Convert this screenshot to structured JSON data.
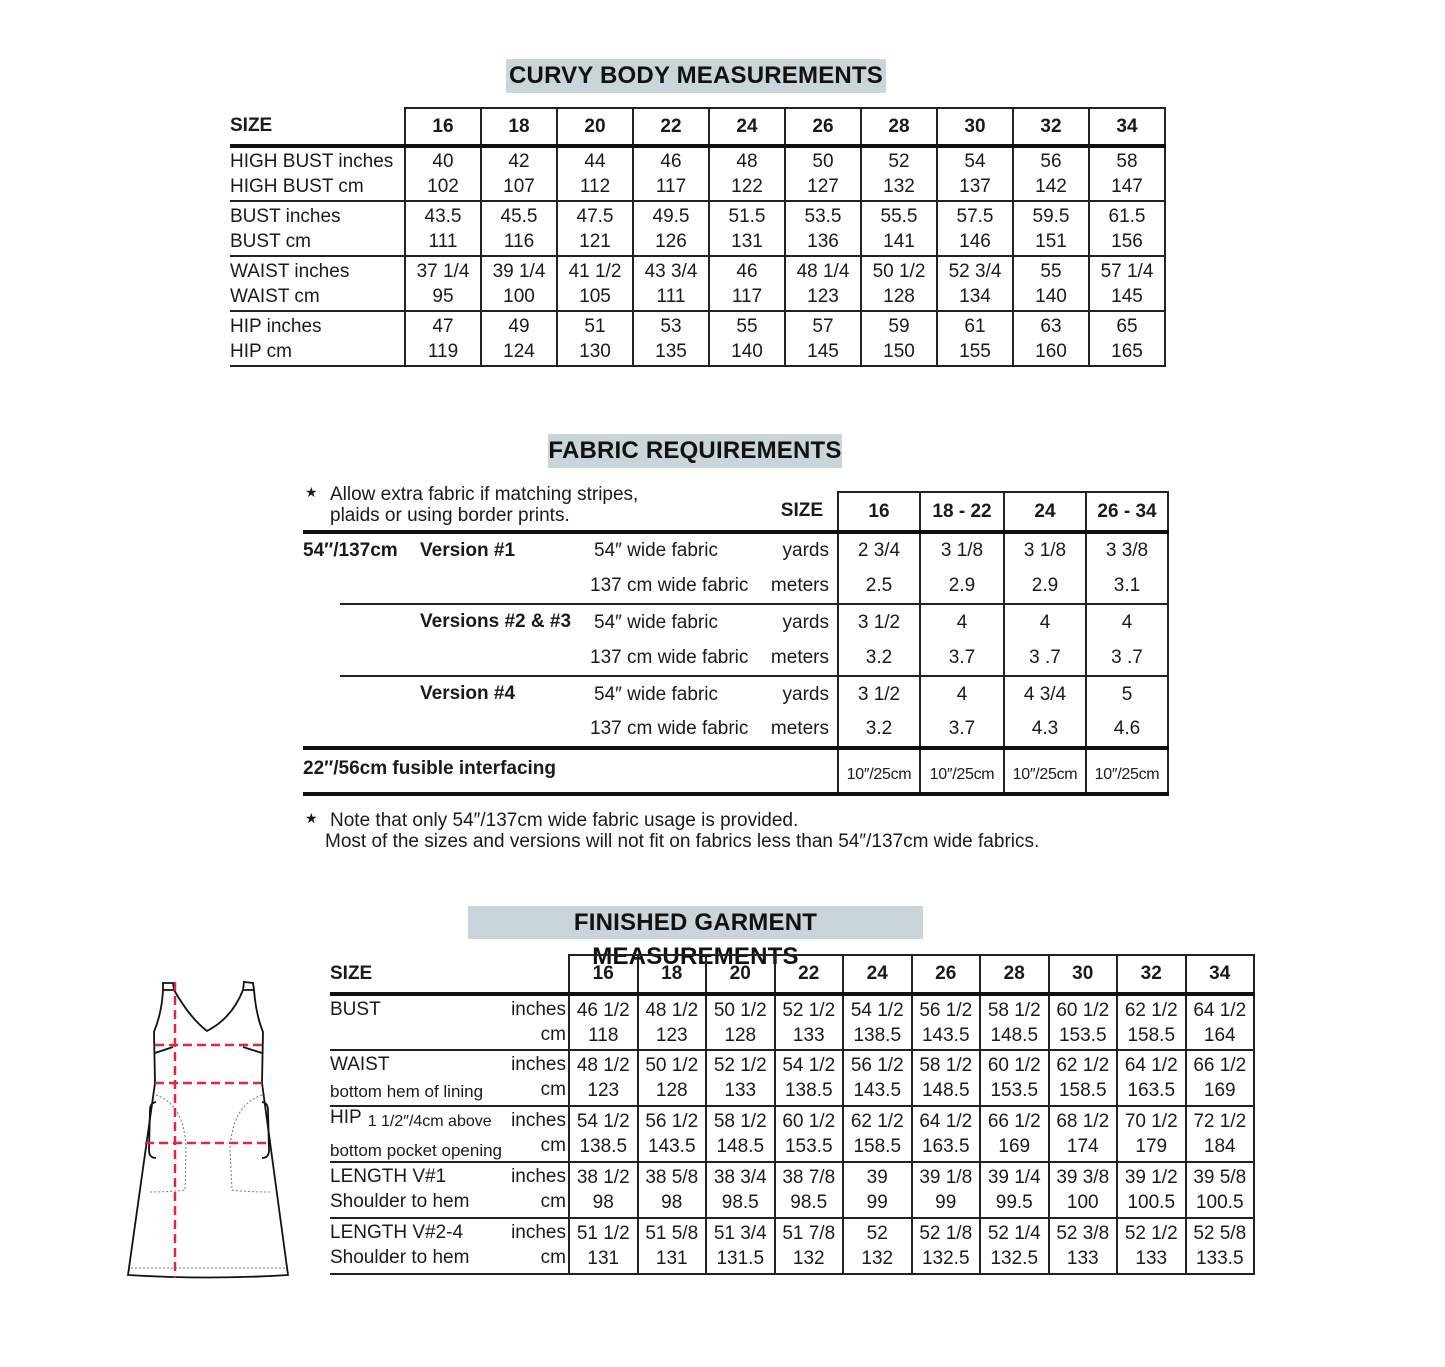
{
  "curvy": {
    "title": "CURVY BODY MEASUREMENTS",
    "size_label": "SIZE",
    "sizes": [
      "16",
      "18",
      "20",
      "22",
      "24",
      "26",
      "28",
      "30",
      "32",
      "34"
    ],
    "rows": [
      {
        "label1": "HIGH BUST inches",
        "label2": "HIGH BUST cm",
        "v1": [
          "40",
          "42",
          "44",
          "46",
          "48",
          "50",
          "52",
          "54",
          "56",
          "58"
        ],
        "v2": [
          "102",
          "107",
          "112",
          "117",
          "122",
          "127",
          "132",
          "137",
          "142",
          "147"
        ]
      },
      {
        "label1": "BUST inches",
        "label2": "BUST cm",
        "v1": [
          "43.5",
          "45.5",
          "47.5",
          "49.5",
          "51.5",
          "53.5",
          "55.5",
          "57.5",
          "59.5",
          "61.5"
        ],
        "v2": [
          "111",
          "116",
          "121",
          "126",
          "131",
          "136",
          "141",
          "146",
          "151",
          "156"
        ]
      },
      {
        "label1": "WAIST inches",
        "label2": "WAIST cm",
        "v1": [
          "37 1/4",
          "39 1/4",
          "41 1/2",
          "43 3/4",
          "46",
          "48 1/4",
          "50 1/2",
          "52 3/4",
          "55",
          "57 1/4"
        ],
        "v2": [
          "95",
          "100",
          "105",
          "111",
          "117",
          "123",
          "128",
          "134",
          "140",
          "145"
        ]
      },
      {
        "label1": "HIP inches",
        "label2": "HIP cm",
        "v1": [
          "47",
          "49",
          "51",
          "53",
          "55",
          "57",
          "59",
          "61",
          "63",
          "65"
        ],
        "v2": [
          "119",
          "124",
          "130",
          "135",
          "140",
          "145",
          "150",
          "155",
          "160",
          "165"
        ]
      }
    ]
  },
  "fabric": {
    "title": "FABRIC REQUIREMENTS",
    "star_note": [
      "Allow extra fabric if matching stripes,",
      "plaids or using border prints."
    ],
    "size_label": "SIZE",
    "sizes": [
      "16",
      "18 - 22",
      "24",
      "26 - 34"
    ],
    "width_label": "54″/137cm",
    "groups": [
      {
        "version": "Version #1",
        "fabric1": "54″ wide fabric",
        "unit1": "yards",
        "fabric2": "137 cm wide fabric",
        "unit2": "meters",
        "v1": [
          "2 3/4",
          "3 1/8",
          "3 1/8",
          "3 3/8"
        ],
        "v2": [
          "2.5",
          "2.9",
          "2.9",
          "3.1"
        ]
      },
      {
        "version": "Versions #2 & #3",
        "fabric1": "54″ wide fabric",
        "unit1": "yards",
        "fabric2": "137 cm wide fabric",
        "unit2": "meters",
        "v1": [
          "3 1/2",
          "4",
          "4",
          "4"
        ],
        "v2": [
          "3.2",
          "3.7",
          "3 .7",
          "3 .7"
        ]
      },
      {
        "version": "Version #4",
        "fabric1": "54″ wide fabric",
        "unit1": "yards",
        "fabric2": "137 cm wide fabric",
        "unit2": "meters",
        "v1": [
          "3 1/2",
          "4",
          "4 3/4",
          "5"
        ],
        "v2": [
          "3.2",
          "3.7",
          "4.3",
          "4.6"
        ]
      }
    ],
    "interfacing_label": "22″/56cm fusible interfacing",
    "interfacing": [
      "10″/25cm",
      "10″/25cm",
      "10″/25cm",
      "10″/25cm"
    ],
    "footnote": [
      "Note that only 54″/137cm wide fabric usage is provided.",
      "Most of the sizes and versions will not fit on fabrics less than 54″/137cm wide fabrics."
    ],
    "star_icon": "★"
  },
  "finished": {
    "title": "FINISHED GARMENT MEASUREMENTS",
    "size_label": "SIZE",
    "sizes": [
      "16",
      "18",
      "20",
      "22",
      "24",
      "26",
      "28",
      "30",
      "32",
      "34"
    ],
    "rows": [
      {
        "line1": "BUST",
        "note": "",
        "line2": "",
        "unit1": "inches",
        "unit2": "cm",
        "v1": [
          "46 1/2",
          "48 1/2",
          "50 1/2",
          "52 1/2",
          "54 1/2",
          "56 1/2",
          "58 1/2",
          "60 1/2",
          "62 1/2",
          "64 1/2"
        ],
        "v2": [
          "118",
          "123",
          "128",
          "133",
          "138.5",
          "143.5",
          "148.5",
          "153.5",
          "158.5",
          "164"
        ]
      },
      {
        "line1": "WAIST",
        "note": "",
        "line2": "bottom hem of lining",
        "unit1": "inches",
        "unit2": "cm",
        "v1": [
          "48 1/2",
          "50 1/2",
          "52 1/2",
          "54 1/2",
          "56 1/2",
          "58 1/2",
          "60 1/2",
          "62 1/2",
          "64 1/2",
          "66 1/2"
        ],
        "v2": [
          "123",
          "128",
          "133",
          "138.5",
          "143.5",
          "148.5",
          "153.5",
          "158.5",
          "163.5",
          "169"
        ]
      },
      {
        "line1": "HIP",
        "note": "1 1/2″/4cm above",
        "line2": "bottom pocket opening",
        "unit1": "inches",
        "unit2": "cm",
        "v1": [
          "54 1/2",
          "56 1/2",
          "58 1/2",
          "60 1/2",
          "62 1/2",
          "64 1/2",
          "66 1/2",
          "68 1/2",
          "70 1/2",
          "72 1/2"
        ],
        "v2": [
          "138.5",
          "143.5",
          "148.5",
          "153.5",
          "158.5",
          "163.5",
          "169",
          "174",
          "179",
          "184"
        ]
      },
      {
        "line1": "LENGTH V#1",
        "note": "",
        "line2": "Shoulder to hem",
        "unit1": "inches",
        "unit2": "cm",
        "v1": [
          "38 1/2",
          "38 5/8",
          "38 3/4",
          "38 7/8",
          "39",
          "39 1/8",
          "39 1/4",
          "39 3/8",
          "39 1/2",
          "39 5/8"
        ],
        "v2": [
          "98",
          "98",
          "98.5",
          "98.5",
          "99",
          "99",
          "99.5",
          "100",
          "100.5",
          "100.5"
        ]
      },
      {
        "line1": "LENGTH V#2-4",
        "note": "",
        "line2": "Shoulder to hem",
        "unit1": "inches",
        "unit2": "cm",
        "v1": [
          "51 1/2",
          "51 5/8",
          "51 3/4",
          "51 7/8",
          "52",
          "52 1/8",
          "52 1/4",
          "52 3/8",
          "52 1/2",
          "52 5/8"
        ],
        "v2": [
          "131",
          "131",
          "131.5",
          "132",
          "132",
          "132.5",
          "132.5",
          "133",
          "133",
          "133.5"
        ]
      }
    ]
  },
  "colors": {
    "title_bg": "#c9d4db",
    "measure_lines": "#e0283c"
  }
}
